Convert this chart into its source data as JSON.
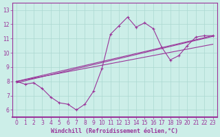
{
  "xlabel": "Windchill (Refroidissement éolien,°C)",
  "x_hours": [
    0,
    1,
    2,
    3,
    4,
    5,
    6,
    7,
    8,
    9,
    10,
    11,
    12,
    13,
    14,
    15,
    16,
    17,
    18,
    19,
    20,
    21,
    22,
    23
  ],
  "temp_actual": [
    8.0,
    7.8,
    7.9,
    7.5,
    6.9,
    6.5,
    6.4,
    6.0,
    6.4,
    7.3,
    8.9,
    11.3,
    11.9,
    12.5,
    11.8,
    12.1,
    11.7,
    10.4,
    9.5,
    9.8,
    10.5,
    11.1,
    11.2,
    11.2
  ],
  "straight_lines": [
    {
      "x0": 0,
      "y0": 8.0,
      "x1": 23,
      "y1": 11.2
    },
    {
      "x0": 0,
      "y0": 8.0,
      "x1": 23,
      "y1": 10.6
    },
    {
      "x0": 0,
      "y0": 8.0,
      "x1": 23,
      "y1": 11.2
    }
  ],
  "bg_color": "#cceee8",
  "grid_color": "#aad8d0",
  "line_color": "#993399",
  "ylim": [
    5.5,
    13.5
  ],
  "xlim": [
    -0.5,
    23.5
  ],
  "yticks": [
    6,
    7,
    8,
    9,
    10,
    11,
    12,
    13
  ],
  "xticks": [
    0,
    1,
    2,
    3,
    4,
    5,
    6,
    7,
    8,
    9,
    10,
    11,
    12,
    13,
    14,
    15,
    16,
    17,
    18,
    19,
    20,
    21,
    22,
    23
  ],
  "tick_fontsize": 5.5,
  "xlabel_fontsize": 6.0
}
